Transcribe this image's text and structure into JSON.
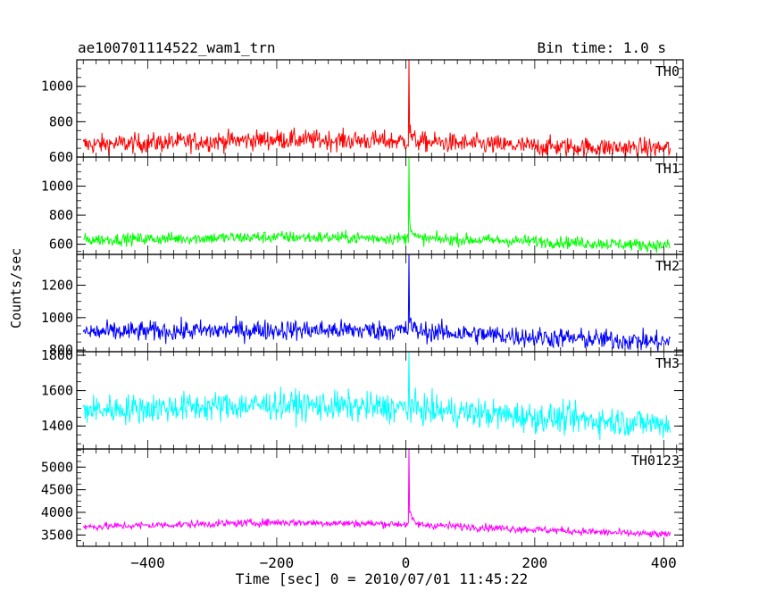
{
  "header": {
    "title": "ae100701114522_wam1_trn",
    "bin_time": "Bin time: 1.0 s"
  },
  "chart_data": {
    "type": "line",
    "ylabel": "Counts/sec",
    "xlabel": "Time [sec] 0 = 2010/07/01 11:45:22",
    "xlim": [
      -510,
      430
    ],
    "x_range_data": [
      -500,
      410
    ],
    "x_ticks": [
      -400,
      -200,
      0,
      200,
      400
    ],
    "x_tick_labels": [
      "−400",
      "−200",
      "0",
      "200",
      "400"
    ],
    "panels": [
      {
        "name": "TH0",
        "color": "#ff0000",
        "ylim": [
          600,
          1150
        ],
        "y_ticks": [
          600,
          800,
          1000
        ],
        "y_tick_labels": [
          "600",
          "800",
          "1000"
        ],
        "baseline": [
          [
            -500,
            670
          ],
          [
            -200,
            700
          ],
          [
            0,
            690
          ],
          [
            200,
            660
          ],
          [
            410,
            650
          ]
        ],
        "noise": 40,
        "peak_x": 5,
        "peak_y": 1150,
        "peak_decay_amp": 80
      },
      {
        "name": "TH1",
        "color": "#00ff00",
        "ylim": [
          530,
          1200
        ],
        "y_ticks": [
          600,
          800,
          1000
        ],
        "y_tick_labels": [
          "600",
          "800",
          "1000"
        ],
        "baseline": [
          [
            -500,
            630
          ],
          [
            -200,
            650
          ],
          [
            0,
            640
          ],
          [
            200,
            620
          ],
          [
            410,
            590
          ]
        ],
        "noise": 30,
        "peak_x": 5,
        "peak_y": 1200,
        "peak_decay_amp": 180
      },
      {
        "name": "TH2",
        "color": "#0000ff",
        "ylim": [
          790,
          1390
        ],
        "y_ticks": [
          800,
          1000,
          1200
        ],
        "y_tick_labels": [
          "800",
          "1000",
          "1200"
        ],
        "baseline": [
          [
            -500,
            910
          ],
          [
            -200,
            925
          ],
          [
            0,
            920
          ],
          [
            200,
            880
          ],
          [
            410,
            850
          ]
        ],
        "noise": 45,
        "peak_x": 5,
        "peak_y": 1390,
        "peak_decay_amp": 80
      },
      {
        "name": "TH3",
        "color": "#00ffff",
        "ylim": [
          1270,
          1820
        ],
        "y_ticks": [
          1400,
          1600,
          1800
        ],
        "y_tick_labels": [
          "1400",
          "1600",
          "1800"
        ],
        "baseline": [
          [
            -500,
            1490
          ],
          [
            -200,
            1520
          ],
          [
            0,
            1500
          ],
          [
            200,
            1450
          ],
          [
            410,
            1410
          ]
        ],
        "noise": 60,
        "peak_x": 5,
        "peak_y": 1820,
        "peak_decay_amp": 30
      },
      {
        "name": "TH0123",
        "color": "#ff00ff",
        "ylim": [
          3250,
          5400
        ],
        "y_ticks": [
          3500,
          4000,
          4500,
          5000
        ],
        "y_tick_labels": [
          "3500",
          "4000",
          "4500",
          "5000"
        ],
        "baseline": [
          [
            -500,
            3680
          ],
          [
            -200,
            3780
          ],
          [
            0,
            3740
          ],
          [
            200,
            3620
          ],
          [
            410,
            3500
          ]
        ],
        "noise": 60,
        "peak_x": 5,
        "peak_y": 5400,
        "peak_decay_amp": 420
      }
    ]
  }
}
